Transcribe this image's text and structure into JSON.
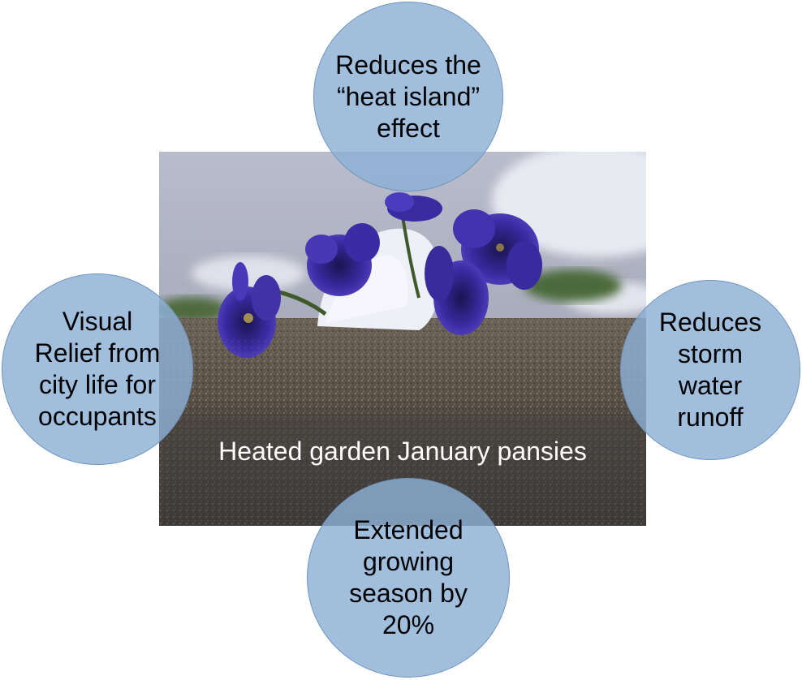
{
  "photo": {
    "caption": "Heated garden January pansies",
    "subject": "pansies-in-snow-photo"
  },
  "benefits": {
    "top": [
      "Reduces the",
      "“heat island”",
      "effect"
    ],
    "left": [
      "Visual",
      "Relief from",
      "city life for",
      "occupants"
    ],
    "right": [
      "Reduces",
      "storm",
      "water",
      "runoff"
    ],
    "bottom": [
      "Extended",
      "growing",
      "season by",
      "20%"
    ]
  },
  "colors": {
    "circle_fill": "#8cb0d6",
    "circle_border": "#6e91b9",
    "caption_text": "#ffffff"
  }
}
